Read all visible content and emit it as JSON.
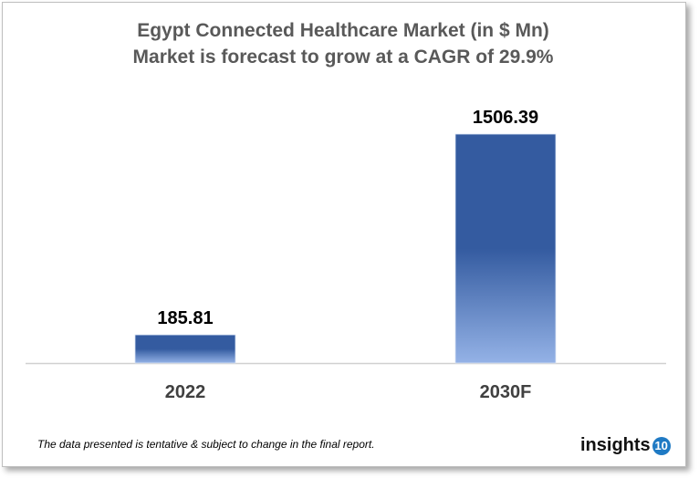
{
  "chart_data": {
    "type": "bar",
    "title": "Egypt Connected Healthcare Market (in $ Mn)",
    "subtitle": "Market is forecast to grow at a CAGR of 29.9%",
    "categories": [
      "2022",
      "2030F"
    ],
    "values": [
      185.81,
      1506.39
    ],
    "data_labels": [
      "185.81",
      "1506.39"
    ],
    "xlabel": "",
    "ylabel": "",
    "ylim": [
      0,
      1506.39
    ],
    "grid": false,
    "bar_color_top": "#345ba0",
    "bar_color_bottom": "#94b2e6"
  },
  "footer": "The data presented is tentative & subject to change in the final report.",
  "logo": {
    "text": "insights",
    "badge": "10",
    "badge_color": "#1f7ac4"
  }
}
